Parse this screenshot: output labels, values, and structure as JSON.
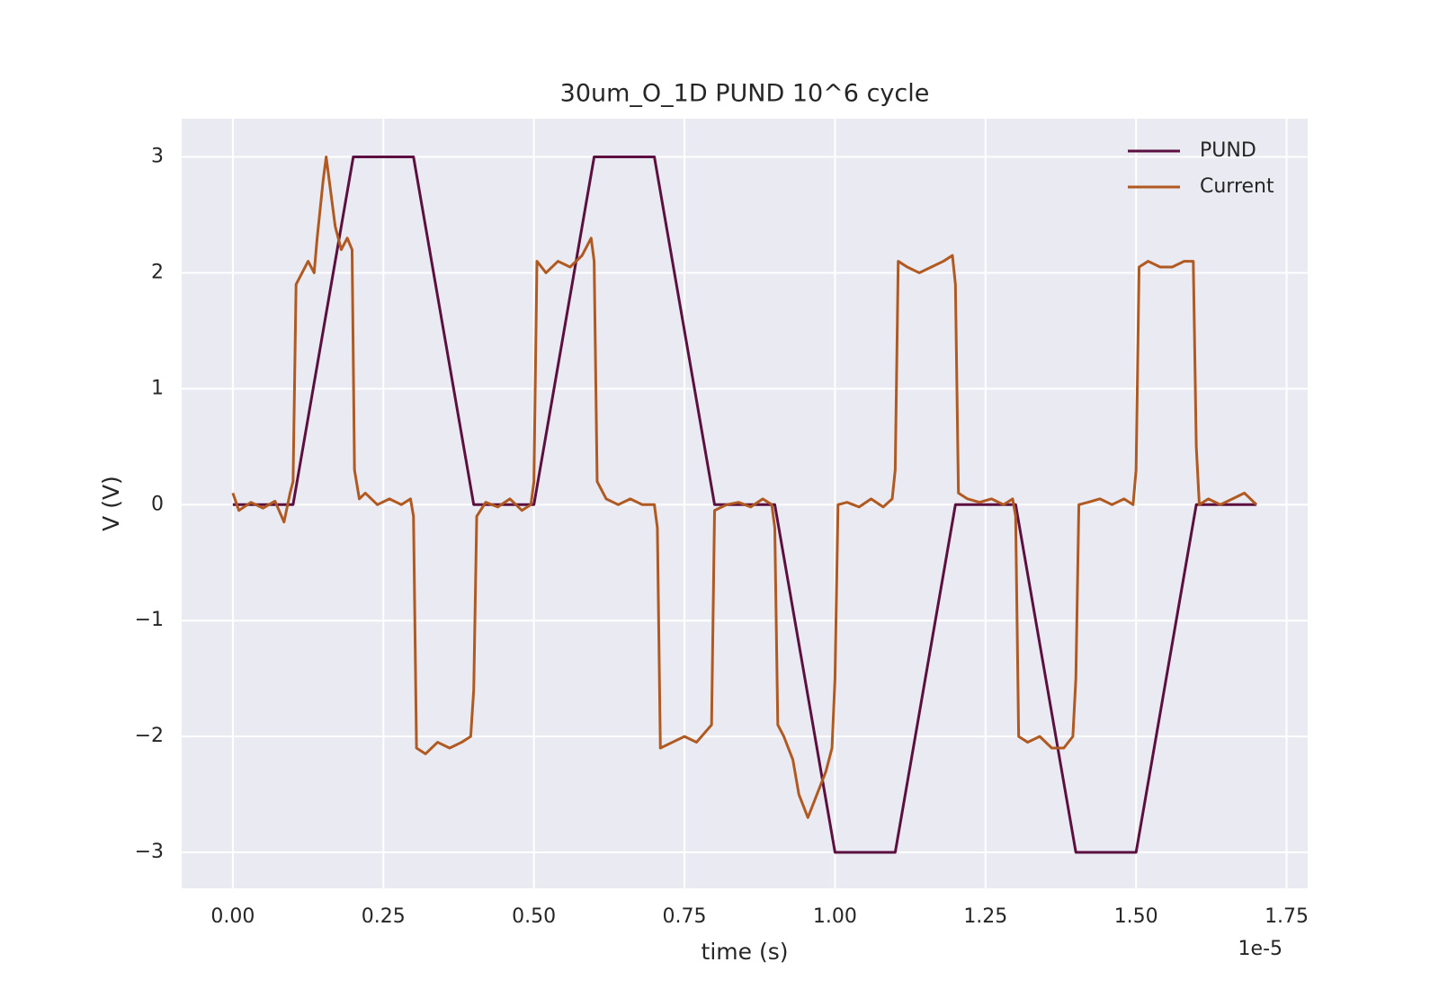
{
  "chart_data": {
    "type": "line",
    "title": "30um_O_1D PUND 10^6 cycle",
    "xlabel": "time (s)",
    "ylabel": "V (V)",
    "x_offset_label": "1e-5",
    "xlim": [
      -0.085,
      1.785
    ],
    "ylim": [
      -3.31,
      3.33
    ],
    "xticks": [
      {
        "value": 0,
        "label": "0.00"
      },
      0.25,
      {
        "value": 0.5,
        "label": "0.50"
      },
      0.75,
      {
        "value": 1,
        "label": "1.00"
      },
      1.25,
      {
        "value": 1.5,
        "label": "1.50"
      },
      1.75
    ],
    "yticks": [
      {
        "value": -3,
        "label": "−3"
      },
      {
        "value": -2,
        "label": "−2"
      },
      {
        "value": -1,
        "label": "−1"
      },
      0,
      1,
      2,
      3
    ],
    "grid": true,
    "legend": "upper right",
    "series": [
      {
        "name": "PUND",
        "color": "#5c1040",
        "x": [
          0,
          0.1,
          0.2,
          0.3,
          0.4,
          0.5,
          0.6,
          0.7,
          0.8,
          0.9,
          1.0,
          1.1,
          1.2,
          1.3,
          1.4,
          1.5,
          1.6,
          1.7
        ],
        "values": [
          0,
          0,
          3,
          3,
          0,
          0,
          3,
          3,
          0,
          0,
          -3,
          -3,
          0,
          0,
          -3,
          -3,
          0,
          0
        ]
      },
      {
        "name": "Current",
        "color": "#b05a22",
        "x": [
          0,
          0.01,
          0.03,
          0.05,
          0.07,
          0.085,
          0.095,
          0.1,
          0.105,
          0.115,
          0.125,
          0.135,
          0.14,
          0.15,
          0.155,
          0.16,
          0.17,
          0.18,
          0.19,
          0.198,
          0.202,
          0.21,
          0.22,
          0.24,
          0.26,
          0.28,
          0.295,
          0.3,
          0.305,
          0.32,
          0.34,
          0.36,
          0.38,
          0.395,
          0.4,
          0.405,
          0.42,
          0.44,
          0.46,
          0.48,
          0.495,
          0.5,
          0.505,
          0.52,
          0.54,
          0.56,
          0.58,
          0.595,
          0.6,
          0.605,
          0.62,
          0.64,
          0.66,
          0.68,
          0.7,
          0.705,
          0.71,
          0.73,
          0.75,
          0.77,
          0.795,
          0.8,
          0.82,
          0.84,
          0.86,
          0.88,
          0.895,
          0.9,
          0.905,
          0.915,
          0.93,
          0.94,
          0.955,
          0.97,
          0.985,
          0.995,
          1.0,
          1.005,
          1.02,
          1.04,
          1.06,
          1.08,
          1.095,
          1.1,
          1.105,
          1.12,
          1.14,
          1.16,
          1.18,
          1.195,
          1.2,
          1.205,
          1.22,
          1.24,
          1.26,
          1.28,
          1.295,
          1.3,
          1.305,
          1.32,
          1.34,
          1.36,
          1.38,
          1.395,
          1.4,
          1.405,
          1.42,
          1.44,
          1.46,
          1.48,
          1.495,
          1.5,
          1.505,
          1.52,
          1.54,
          1.56,
          1.58,
          1.595,
          1.6,
          1.605,
          1.62,
          1.64,
          1.66,
          1.68,
          1.7
        ],
        "values": [
          0.1,
          -0.05,
          0.02,
          -0.03,
          0.03,
          -0.15,
          0.1,
          0.2,
          1.9,
          2.0,
          2.1,
          2.0,
          2.3,
          2.8,
          3.0,
          2.8,
          2.4,
          2.2,
          2.3,
          2.2,
          0.3,
          0.05,
          0.1,
          0.0,
          0.05,
          0.0,
          0.05,
          -0.1,
          -2.1,
          -2.15,
          -2.05,
          -2.1,
          -2.05,
          -2.0,
          -1.6,
          -0.1,
          0.02,
          -0.02,
          0.05,
          -0.05,
          0.0,
          0.2,
          2.1,
          2.0,
          2.1,
          2.05,
          2.15,
          2.3,
          2.1,
          0.2,
          0.05,
          0.0,
          0.05,
          0.0,
          0.0,
          -0.2,
          -2.1,
          -2.05,
          -2.0,
          -2.05,
          -1.9,
          -0.05,
          0.0,
          0.02,
          -0.02,
          0.05,
          0.0,
          -0.2,
          -1.9,
          -2.0,
          -2.2,
          -2.5,
          -2.7,
          -2.5,
          -2.3,
          -2.1,
          -1.5,
          0.0,
          0.02,
          -0.02,
          0.05,
          -0.02,
          0.05,
          0.3,
          2.1,
          2.05,
          2.0,
          2.05,
          2.1,
          2.15,
          1.9,
          0.1,
          0.05,
          0.02,
          0.05,
          0.0,
          0.05,
          -0.1,
          -2.0,
          -2.05,
          -2.0,
          -2.1,
          -2.1,
          -2.0,
          -1.5,
          0.0,
          0.02,
          0.05,
          0.0,
          0.05,
          0.0,
          0.3,
          2.05,
          2.1,
          2.05,
          2.05,
          2.1,
          2.1,
          0.5,
          0.0,
          0.05,
          0.0,
          0.05,
          0.1,
          0.0
        ]
      }
    ]
  }
}
